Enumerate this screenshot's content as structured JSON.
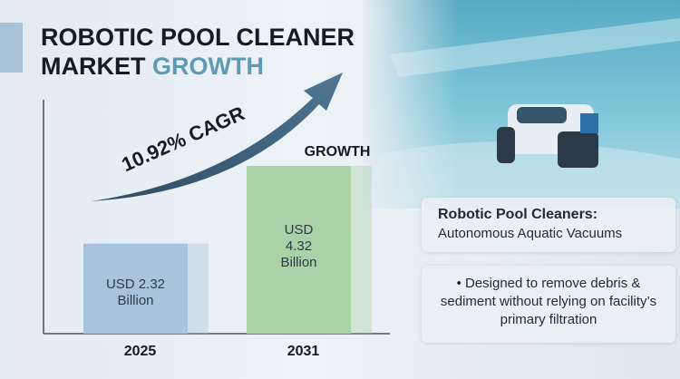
{
  "chart_data": {
    "type": "bar",
    "title_lines": [
      "ROBOTIC POOL CLEANER",
      "MARKET"
    ],
    "title_highlight": "GROWTH",
    "categories": [
      "2025",
      "2031"
    ],
    "values": [
      2.32,
      4.32
    ],
    "value_labels": [
      "USD 2.32 Billion",
      "USD 4.32 Billion"
    ],
    "colors": [
      "#a8c4dc",
      "#a9d2a6"
    ],
    "annotations": [
      "10.92% CAGR",
      "GROWTH"
    ]
  },
  "panels": {
    "heading": "Robotic Pool Cleaners:",
    "subheading": "Autonomous Aquatic Vacuums",
    "bullet": "Designed to remove debris & sediment without relying on facility’s primary filtration"
  }
}
